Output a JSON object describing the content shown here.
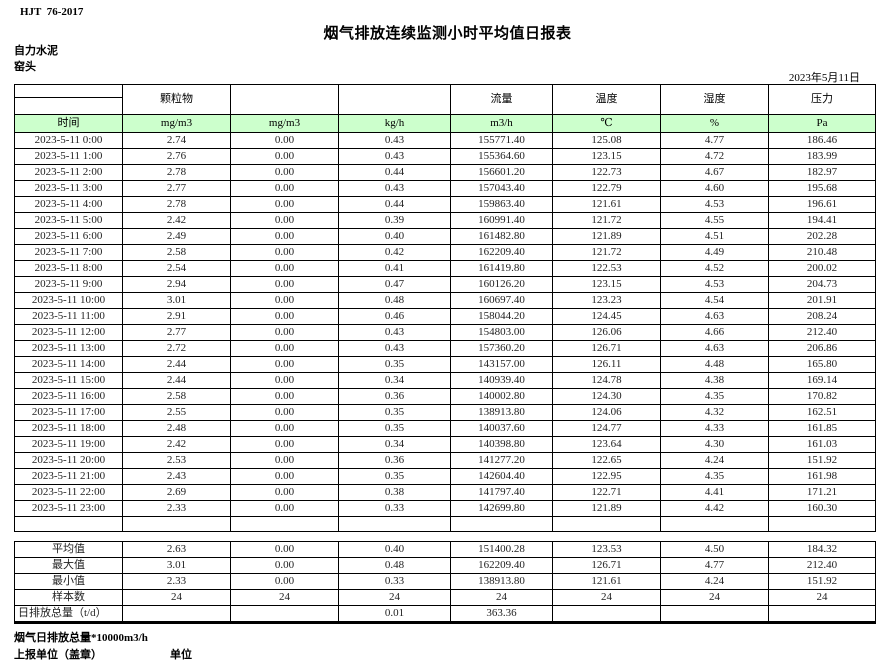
{
  "doc": {
    "standard": "HJT  76-2017",
    "title": "烟气排放连续监测小时平均值日报表",
    "company": "自力水泥",
    "station": "窑头",
    "date": "2023年5月11日"
  },
  "table": {
    "group_headers": [
      "",
      "颗粒物",
      "",
      "",
      "流量",
      "温度",
      "湿度",
      "压力"
    ],
    "unit_row": [
      "时间",
      "mg/m3",
      "mg/m3",
      "kg/h",
      "m3/h",
      "℃",
      "%",
      "Pa"
    ],
    "rows": [
      [
        "2023-5-11 0:00",
        "2.74",
        "0.00",
        "0.43",
        "155771.40",
        "125.08",
        "4.77",
        "186.46"
      ],
      [
        "2023-5-11 1:00",
        "2.76",
        "0.00",
        "0.43",
        "155364.60",
        "123.15",
        "4.72",
        "183.99"
      ],
      [
        "2023-5-11 2:00",
        "2.78",
        "0.00",
        "0.44",
        "156601.20",
        "122.73",
        "4.67",
        "182.97"
      ],
      [
        "2023-5-11 3:00",
        "2.77",
        "0.00",
        "0.43",
        "157043.40",
        "122.79",
        "4.60",
        "195.68"
      ],
      [
        "2023-5-11 4:00",
        "2.78",
        "0.00",
        "0.44",
        "159863.40",
        "121.61",
        "4.53",
        "196.61"
      ],
      [
        "2023-5-11 5:00",
        "2.42",
        "0.00",
        "0.39",
        "160991.40",
        "121.72",
        "4.55",
        "194.41"
      ],
      [
        "2023-5-11 6:00",
        "2.49",
        "0.00",
        "0.40",
        "161482.80",
        "121.89",
        "4.51",
        "202.28"
      ],
      [
        "2023-5-11 7:00",
        "2.58",
        "0.00",
        "0.42",
        "162209.40",
        "121.72",
        "4.49",
        "210.48"
      ],
      [
        "2023-5-11 8:00",
        "2.54",
        "0.00",
        "0.41",
        "161419.80",
        "122.53",
        "4.52",
        "200.02"
      ],
      [
        "2023-5-11 9:00",
        "2.94",
        "0.00",
        "0.47",
        "160126.20",
        "123.15",
        "4.53",
        "204.73"
      ],
      [
        "2023-5-11 10:00",
        "3.01",
        "0.00",
        "0.48",
        "160697.40",
        "123.23",
        "4.54",
        "201.91"
      ],
      [
        "2023-5-11 11:00",
        "2.91",
        "0.00",
        "0.46",
        "158044.20",
        "124.45",
        "4.63",
        "208.24"
      ],
      [
        "2023-5-11 12:00",
        "2.77",
        "0.00",
        "0.43",
        "154803.00",
        "126.06",
        "4.66",
        "212.40"
      ],
      [
        "2023-5-11 13:00",
        "2.72",
        "0.00",
        "0.43",
        "157360.20",
        "126.71",
        "4.63",
        "206.86"
      ],
      [
        "2023-5-11 14:00",
        "2.44",
        "0.00",
        "0.35",
        "143157.00",
        "126.11",
        "4.48",
        "165.80"
      ],
      [
        "2023-5-11 15:00",
        "2.44",
        "0.00",
        "0.34",
        "140939.40",
        "124.78",
        "4.38",
        "169.14"
      ],
      [
        "2023-5-11 16:00",
        "2.58",
        "0.00",
        "0.36",
        "140002.80",
        "124.30",
        "4.35",
        "170.82"
      ],
      [
        "2023-5-11 17:00",
        "2.55",
        "0.00",
        "0.35",
        "138913.80",
        "124.06",
        "4.32",
        "162.51"
      ],
      [
        "2023-5-11 18:00",
        "2.48",
        "0.00",
        "0.35",
        "140037.60",
        "124.77",
        "4.33",
        "161.85"
      ],
      [
        "2023-5-11 19:00",
        "2.42",
        "0.00",
        "0.34",
        "140398.80",
        "123.64",
        "4.30",
        "161.03"
      ],
      [
        "2023-5-11 20:00",
        "2.53",
        "0.00",
        "0.36",
        "141277.20",
        "122.65",
        "4.24",
        "151.92"
      ],
      [
        "2023-5-11 21:00",
        "2.43",
        "0.00",
        "0.35",
        "142604.40",
        "122.95",
        "4.35",
        "161.98"
      ],
      [
        "2023-5-11 22:00",
        "2.69",
        "0.00",
        "0.38",
        "141797.40",
        "122.71",
        "4.41",
        "171.21"
      ],
      [
        "2023-5-11 23:00",
        "2.33",
        "0.00",
        "0.33",
        "142699.80",
        "121.89",
        "4.42",
        "160.30"
      ],
      [
        "",
        "",
        "",
        "",
        "",
        "",
        "",
        ""
      ]
    ],
    "summary_rows": [
      [
        "平均值",
        "2.63",
        "0.00",
        "0.40",
        "151400.28",
        "123.53",
        "4.50",
        "184.32"
      ],
      [
        "最大值",
        "3.01",
        "0.00",
        "0.48",
        "162209.40",
        "126.71",
        "4.77",
        "212.40"
      ],
      [
        "最小值",
        "2.33",
        "0.00",
        "0.33",
        "138913.80",
        "121.61",
        "4.24",
        "151.92"
      ],
      [
        "样本数",
        "24",
        "24",
        "24",
        "24",
        "24",
        "24",
        "24"
      ],
      [
        "日排放总量（t/d）",
        "",
        "",
        "0.01",
        "363.36",
        "",
        "",
        ""
      ]
    ]
  },
  "footer": {
    "note": "烟气日排放总量*10000m3/h",
    "report_unit": "上报单位（盖章）",
    "unit_label": "单位"
  },
  "colors": {
    "unit_row_bg": "#ccffcc",
    "border": "#000000"
  }
}
